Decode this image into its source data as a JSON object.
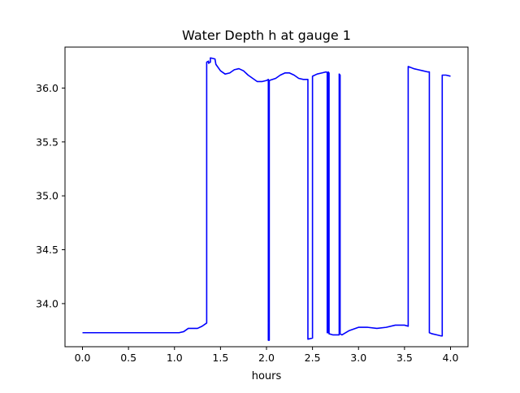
{
  "chart_data": {
    "type": "line",
    "title": "Water Depth h at gauge 1",
    "xlabel": "hours",
    "ylabel": "",
    "xlim": [
      -0.19,
      4.19
    ],
    "ylim": [
      33.6,
      36.38
    ],
    "xticks": [
      0.0,
      0.5,
      1.0,
      1.5,
      2.0,
      2.5,
      3.0,
      3.5,
      4.0
    ],
    "xtick_labels": [
      "0.0",
      "0.5",
      "1.0",
      "1.5",
      "2.0",
      "2.5",
      "3.0",
      "3.5",
      "4.0"
    ],
    "yticks": [
      34.0,
      34.5,
      35.0,
      35.5,
      36.0
    ],
    "ytick_labels": [
      "34.0",
      "34.5",
      "35.0",
      "35.5",
      "36.0"
    ],
    "grid": false,
    "series": [
      {
        "color": "#0000ff",
        "x": [
          0.0,
          1.05,
          1.1,
          1.15,
          1.2,
          1.25,
          1.3,
          1.35,
          1.35,
          1.37,
          1.37,
          1.39,
          1.39,
          1.44,
          1.45,
          1.5,
          1.55,
          1.6,
          1.65,
          1.7,
          1.75,
          1.8,
          1.85,
          1.9,
          1.95,
          2.0,
          2.02,
          2.02,
          2.03,
          2.03,
          2.1,
          2.15,
          2.2,
          2.25,
          2.3,
          2.35,
          2.4,
          2.45,
          2.45,
          2.5,
          2.5,
          2.55,
          2.6,
          2.65,
          2.66,
          2.66,
          2.67,
          2.67,
          2.68,
          2.68,
          2.72,
          2.78,
          2.79,
          2.79,
          2.8,
          2.8,
          2.82,
          2.9,
          3.0,
          3.1,
          3.2,
          3.3,
          3.4,
          3.5,
          3.54,
          3.54,
          3.6,
          3.65,
          3.7,
          3.75,
          3.77,
          3.77,
          3.8,
          3.85,
          3.9,
          3.91,
          3.91,
          3.95,
          4.0
        ],
        "y": [
          33.73,
          33.73,
          33.74,
          33.77,
          33.77,
          33.77,
          33.79,
          33.82,
          36.24,
          36.25,
          36.23,
          36.24,
          36.28,
          36.27,
          36.22,
          36.16,
          36.13,
          36.14,
          36.17,
          36.18,
          36.16,
          36.12,
          36.09,
          36.06,
          36.06,
          36.07,
          36.08,
          33.66,
          33.66,
          36.07,
          36.09,
          36.12,
          36.14,
          36.14,
          36.12,
          36.09,
          36.08,
          36.08,
          33.67,
          33.68,
          36.11,
          36.13,
          36.14,
          36.15,
          36.14,
          33.73,
          33.73,
          36.15,
          36.14,
          33.72,
          33.71,
          33.71,
          33.71,
          36.13,
          36.12,
          33.72,
          33.71,
          33.75,
          33.78,
          33.78,
          33.77,
          33.78,
          33.8,
          33.8,
          33.79,
          36.2,
          36.18,
          36.17,
          36.16,
          36.15,
          36.15,
          33.73,
          33.72,
          33.71,
          33.7,
          33.7,
          36.12,
          36.12,
          36.11
        ]
      }
    ]
  }
}
